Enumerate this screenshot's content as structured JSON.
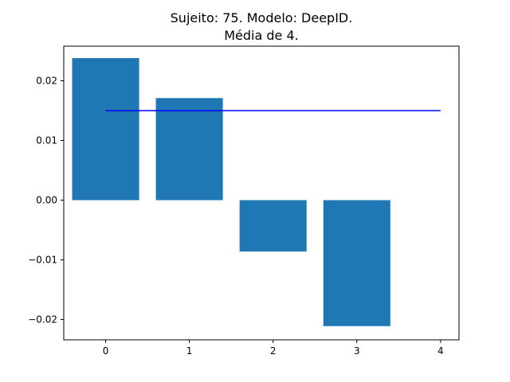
{
  "chart_data": {
    "type": "bar",
    "title_lines": [
      "Sujeito: 75. Modelo: DeepID.",
      "Média de 4."
    ],
    "categories": [
      0,
      1,
      2,
      3
    ],
    "values": [
      0.0238,
      0.0171,
      -0.0086,
      -0.0211
    ],
    "bar_color": "#1f77b4",
    "mean_line": {
      "x": [
        0,
        4
      ],
      "y": 0.015,
      "color": "#0000ff"
    },
    "xlim": [
      -0.5,
      4.22
    ],
    "ylim": [
      -0.0234,
      0.0258
    ],
    "x_ticks": [
      0,
      1,
      2,
      3,
      4
    ],
    "x_tick_labels": [
      "0",
      "1",
      "2",
      "3",
      "4"
    ],
    "y_ticks": [
      0.02,
      0.01,
      0.0,
      -0.01,
      -0.02
    ],
    "y_tick_labels": [
      "0.02",
      "0.01",
      "0.00",
      "−0.01",
      "−0.02"
    ],
    "grid": false,
    "xlabel": "",
    "ylabel": ""
  }
}
